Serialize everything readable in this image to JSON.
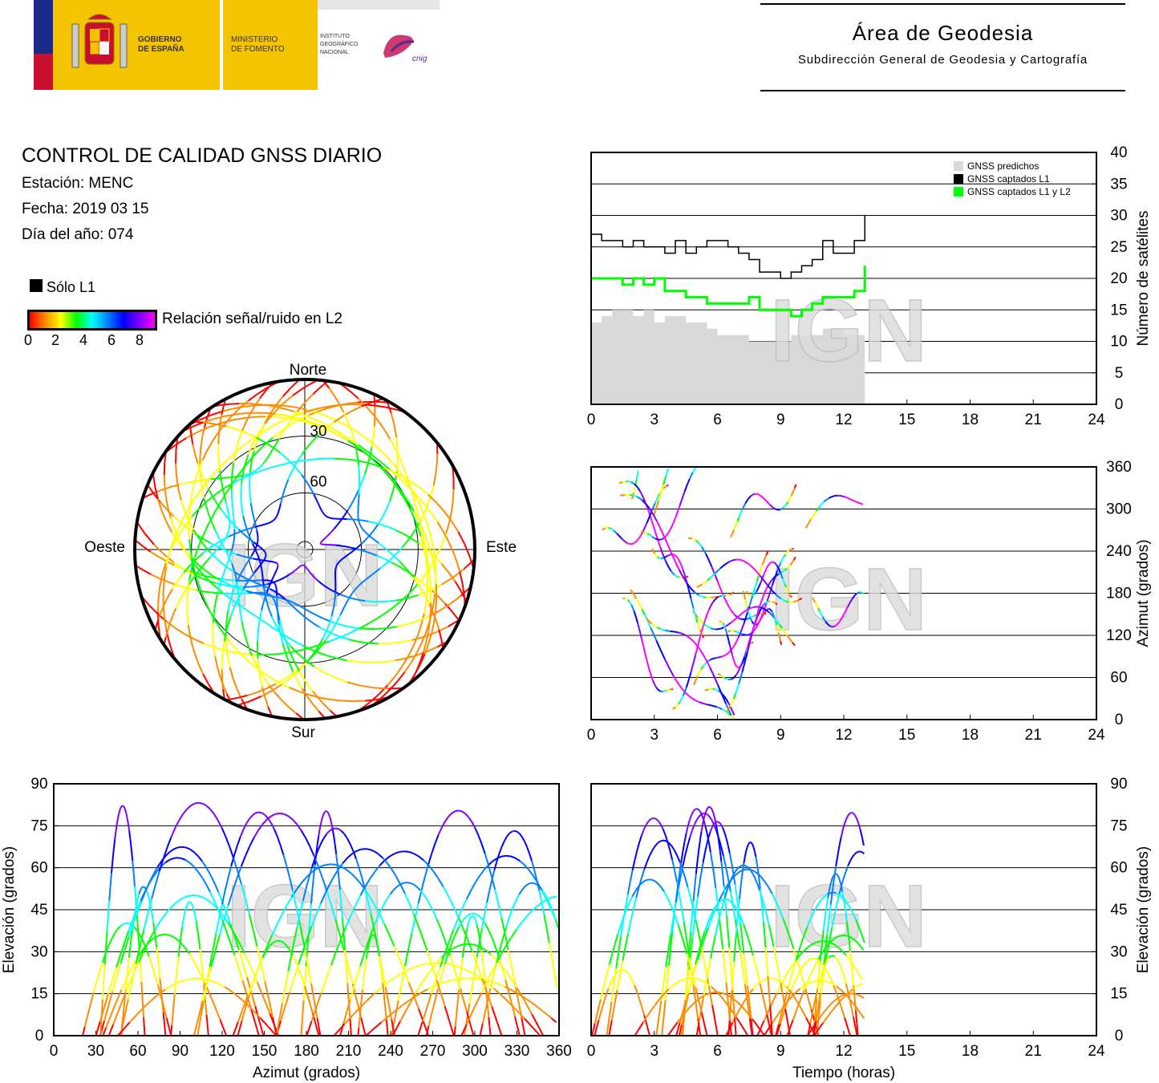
{
  "header": {
    "gov_line1": "GOBIERNO",
    "gov_line2": "DE ESPAÑA",
    "ministry_line1": "MINISTERIO",
    "ministry_line2": "DE FOMENTO",
    "ign_line1": "INSTITUTO",
    "ign_line2": "GEOGRÁFICO",
    "ign_line3": "NACIONAL",
    "cnig_logo_text": "cnig",
    "area_title": "Área de Geodesia",
    "area_subtitle": "Subdirección General de Geodesia y Cartografía"
  },
  "report": {
    "title": "CONTROL DE CALIDAD GNSS DIARIO",
    "station": "Estación: MENC",
    "date": "Fecha: 2019 03 15",
    "doy": "Día del año: 074"
  },
  "legend": {
    "l1_only": "Sólo L1",
    "snr_label": "Relación señal/ruido en L2",
    "snr_ticks": [
      "0",
      "2",
      "4",
      "6",
      "8"
    ],
    "snr_colors": [
      "#ff0000",
      "#ff8c00",
      "#ffff00",
      "#00ff00",
      "#00ffff",
      "#0080ff",
      "#0000ff",
      "#8000ff",
      "#ff00ff"
    ]
  },
  "watermark": "IGN",
  "colors": {
    "predicted": "#d9d9d9",
    "l1": "#000000",
    "l1l2": "#00ff00",
    "grid": "#000000"
  },
  "chart_data": [
    {
      "id": "sat-count",
      "type": "line",
      "xlim": [
        0,
        24
      ],
      "ylim": [
        0,
        40
      ],
      "xticks": [
        "0",
        "3",
        "6",
        "9",
        "12",
        "15",
        "18",
        "21",
        "24"
      ],
      "yticks": [
        "0",
        "5",
        "10",
        "15",
        "20",
        "25",
        "30",
        "35",
        "40"
      ],
      "ylabel": "Número de satélites",
      "legend_position": "top-right",
      "series": [
        {
          "name": "GNSS predichos",
          "kind": "area",
          "color": "#d9d9d9",
          "x": [
            0,
            0.5,
            1,
            1.5,
            2,
            2.5,
            3,
            3.5,
            4,
            4.5,
            5,
            5.5,
            6,
            6.5,
            7,
            7.5,
            8,
            8.5,
            9,
            9.5,
            10,
            10.5,
            11,
            11.5,
            12,
            12.5,
            13
          ],
          "y": [
            13,
            14,
            15,
            15,
            14,
            15,
            13,
            14,
            14,
            13,
            13,
            12,
            11,
            11,
            11,
            10,
            10,
            10,
            10,
            11,
            11,
            11,
            12,
            12,
            11,
            11,
            11
          ]
        },
        {
          "name": "GNSS captados L1",
          "kind": "step",
          "color": "#000000",
          "x": [
            0,
            0.5,
            1,
            1.5,
            2,
            2.5,
            3,
            3.5,
            4,
            4.5,
            5,
            5.5,
            6,
            6.5,
            7,
            7.5,
            8,
            8.5,
            9,
            9.5,
            10,
            10.5,
            11,
            11.5,
            12,
            12.5,
            13
          ],
          "y": [
            27,
            26,
            26,
            25,
            26,
            25,
            25,
            24,
            26,
            24,
            25,
            26,
            26,
            25,
            24,
            23,
            21,
            21,
            20,
            21,
            22,
            23,
            26,
            24,
            24,
            26,
            30
          ]
        },
        {
          "name": "GNSS captados L1 y L2",
          "kind": "step",
          "color": "#00ff00",
          "x": [
            0,
            0.5,
            1,
            1.5,
            2,
            2.5,
            3,
            3.5,
            4,
            4.5,
            5,
            5.5,
            6,
            6.5,
            7,
            7.5,
            8,
            8.5,
            9,
            9.5,
            10,
            10.5,
            11,
            11.5,
            12,
            12.5,
            13
          ],
          "y": [
            20,
            20,
            20,
            19,
            20,
            19,
            20,
            18,
            18,
            17,
            17,
            16,
            16,
            16,
            16,
            17,
            15,
            15,
            15,
            14,
            15,
            16,
            17,
            17,
            17,
            18,
            22
          ]
        }
      ]
    },
    {
      "id": "azimuth-time",
      "type": "scatter",
      "xlim": [
        0,
        24
      ],
      "ylim": [
        0,
        360
      ],
      "xticks": [
        "0",
        "3",
        "6",
        "9",
        "12",
        "15",
        "18",
        "21",
        "24"
      ],
      "yticks": [
        "0",
        "60",
        "120",
        "180",
        "240",
        "300",
        "360"
      ],
      "ylabel": "Azimut (grados)"
    },
    {
      "id": "elevation-azimuth",
      "type": "scatter",
      "xlim": [
        0,
        360
      ],
      "ylim": [
        0,
        90
      ],
      "xticks": [
        "0",
        "30",
        "60",
        "90",
        "120",
        "150",
        "180",
        "210",
        "240",
        "270",
        "300",
        "330",
        "360"
      ],
      "yticks": [
        "0",
        "15",
        "30",
        "45",
        "60",
        "75",
        "90"
      ],
      "xlabel": "Azimut (grados)",
      "ylabel": "Elevación (grados)"
    },
    {
      "id": "elevation-time",
      "type": "scatter",
      "xlim": [
        0,
        24
      ],
      "ylim": [
        0,
        90
      ],
      "xticks": [
        "0",
        "3",
        "6",
        "9",
        "12",
        "15",
        "18",
        "21",
        "24"
      ],
      "yticks": [
        "0",
        "15",
        "30",
        "45",
        "60",
        "75",
        "90"
      ],
      "xlabel": "Tiempo (horas)",
      "ylabel": "Elevación (grados)"
    },
    {
      "id": "skyplot",
      "type": "scatter",
      "labels": {
        "north": "Norte",
        "south": "Sur",
        "east": "Este",
        "west": "Oeste"
      },
      "rings": [
        "30",
        "60"
      ]
    }
  ]
}
